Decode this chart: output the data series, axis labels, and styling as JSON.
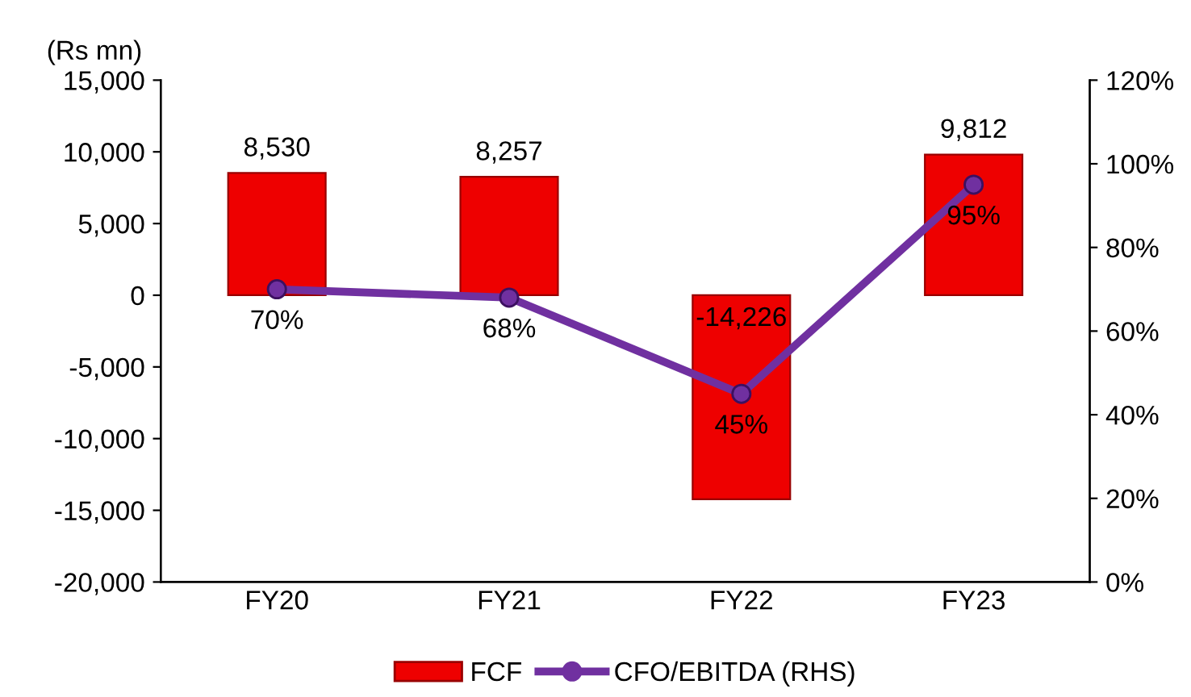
{
  "chart_data": {
    "type": "bar",
    "ylabel": "(Rs mn)",
    "categories": [
      "FY20",
      "FY21",
      "FY22",
      "FY23"
    ],
    "series": [
      {
        "name": "FCF",
        "color": "#ee0000",
        "values": [
          8530,
          8257,
          -14226,
          9812
        ],
        "value_labels": [
          "8,530",
          "8,257",
          "-14,226",
          "9,812"
        ]
      },
      {
        "name": "CFO/EBITDA (RHS)",
        "type": "line",
        "axis": "y2",
        "color": "#7030a0",
        "values": [
          70,
          68,
          45,
          95
        ],
        "value_labels": [
          "70%",
          "68%",
          "45%",
          "95%"
        ],
        "marker": "circle",
        "line_style": "solid"
      }
    ],
    "ylim": [
      -20000,
      15000
    ],
    "yticks": [
      {
        "value": -20000,
        "label": "-20,000"
      },
      {
        "value": -15000,
        "label": "-15,000"
      },
      {
        "value": -10000,
        "label": "-10,000"
      },
      {
        "value": -5000,
        "label": "-5,000"
      },
      0,
      {
        "value": 5000,
        "label": "5,000"
      },
      {
        "value": 10000,
        "label": "10,000"
      },
      {
        "value": 15000,
        "label": "15,000"
      }
    ],
    "y2lim": [
      0,
      120
    ],
    "y2ticks": [
      {
        "value": 0,
        "label": "0%"
      },
      {
        "value": 20,
        "label": "20%"
      },
      {
        "value": 40,
        "label": "40%"
      },
      {
        "value": 60,
        "label": "60%"
      },
      {
        "value": 80,
        "label": "80%"
      },
      {
        "value": 100,
        "label": "100%"
      },
      {
        "value": 120,
        "label": "120%"
      }
    ],
    "grid": false,
    "legend": "bottom"
  }
}
